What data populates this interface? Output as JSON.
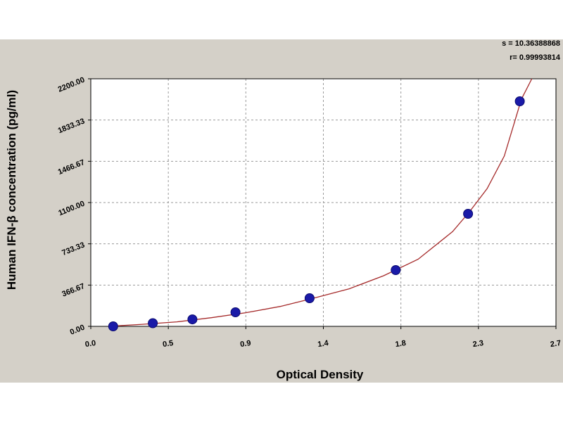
{
  "chart_data": {
    "type": "scatter",
    "title": "",
    "xlabel": "Optical Density",
    "ylabel": "Human IFN-β concentration (pg/ml)",
    "xlim": [
      0.0,
      2.7
    ],
    "ylim": [
      0.0,
      2200.0
    ],
    "x_ticks": [
      "0.0",
      "0.5",
      "0.9",
      "1.4",
      "1.8",
      "2.3",
      "2.7"
    ],
    "y_ticks": [
      "0.00",
      "366.67",
      "733.33",
      "1100.00",
      "1466.67",
      "1833.33",
      "2200.00"
    ],
    "grid": true,
    "series": [
      {
        "type": "scatter",
        "x": [
          0.13,
          0.36,
          0.59,
          0.84,
          1.27,
          1.77,
          2.19,
          2.49
        ],
        "y": [
          0,
          28,
          62,
          125,
          250,
          500,
          1000,
          2000
        ],
        "color": "#1a1aa8"
      },
      {
        "type": "line",
        "x": [
          0.1,
          0.3,
          0.5,
          0.7,
          0.9,
          1.1,
          1.3,
          1.5,
          1.7,
          1.9,
          2.1,
          2.2,
          2.3,
          2.4,
          2.5,
          2.56
        ],
        "y": [
          0,
          18,
          40,
          77,
          121,
          177,
          253,
          334,
          450,
          596,
          842,
          1022,
          1223,
          1514,
          2020,
          2200
        ],
        "color": "#a52a2a"
      }
    ],
    "fit_stats": {
      "s": "s = 10.36388868",
      "r": "r= 0.99993814"
    }
  }
}
